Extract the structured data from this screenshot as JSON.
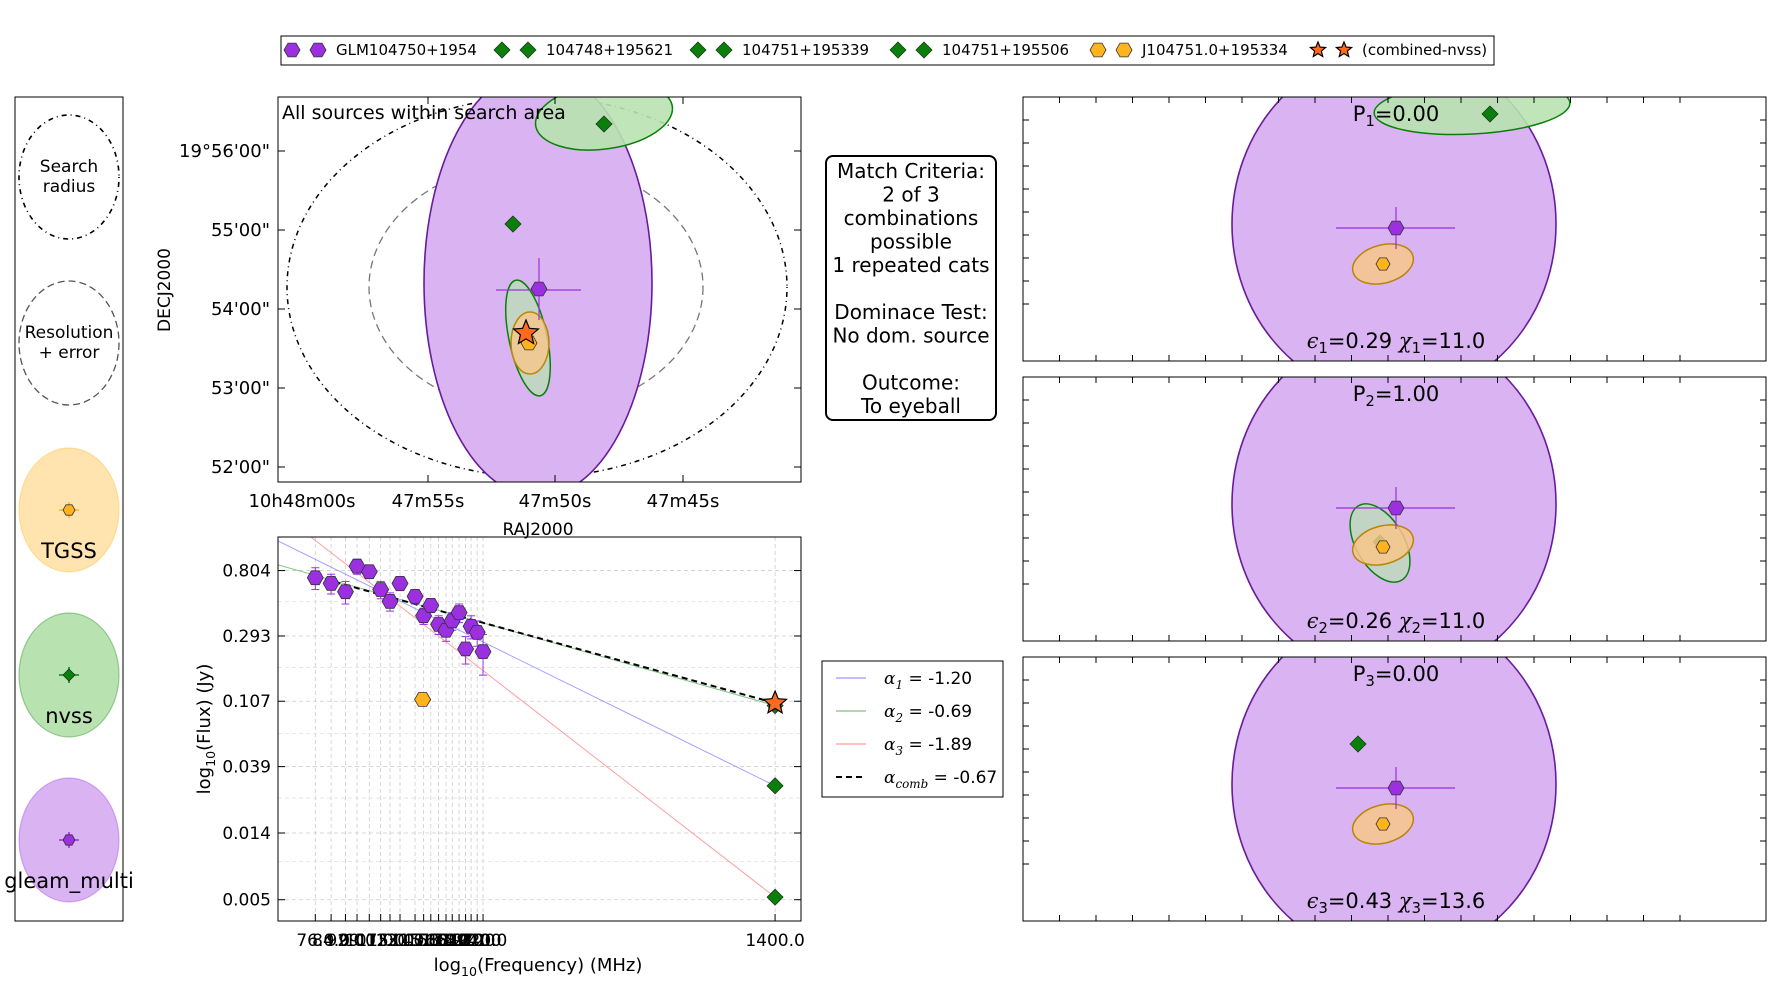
{
  "legend": [
    {
      "label": "GLM104750+1954",
      "marker": "hexagon",
      "color": "#9B30E0"
    },
    {
      "label": "104748+195621",
      "marker": "diamond",
      "color": "#0A7F0A"
    },
    {
      "label": "104751+195339",
      "marker": "diamond",
      "color": "#0A7F0A"
    },
    {
      "label": "104751+195506",
      "marker": "diamond",
      "color": "#0A7F0A"
    },
    {
      "label": "J104751.0+195334",
      "marker": "hexagon",
      "color": "#FFB41E"
    },
    {
      "label": "(combined-nvss)",
      "marker": "star",
      "color": "#FF6A1E"
    }
  ],
  "key_panel": {
    "search": "Search\nradius",
    "resolution": "Resolution\n+ error",
    "catalogues": [
      {
        "name": "TGSS",
        "fill": "#FFE4B0",
        "marker_color": "#FFB41E"
      },
      {
        "name": "nvss",
        "fill": "#B8E2B0",
        "marker_color": "#0A7F0A"
      },
      {
        "name": "gleam_multi",
        "fill": "#D9B3F2",
        "marker_color": "#9B30E0"
      }
    ]
  },
  "colors": {
    "gleam": "#9B30E0",
    "gleam_fill": "#D9B3F2",
    "gleam_edge": "#6A1B9A",
    "nvss": "#0A7F0A",
    "nvss_fill": "#B8E2B0",
    "tgss": "#FFB41E",
    "tgss_edge": "#B8860B",
    "combined": "#FF6A1E"
  },
  "sky_panel": {
    "title": "All sources within search area",
    "xlabel": "RAJ2000",
    "ylabel": "DECJ2000",
    "xticks": [
      "10h48m00s",
      "47m55s",
      "47m50s",
      "47m45s"
    ],
    "yticks": [
      "19°56'00\"",
      "55'00\"",
      "54'00\"",
      "53'00\"",
      "52'00\""
    ]
  },
  "criteria": {
    "text": "Match Criteria:\n2 of 3\ncombinations\npossible\n1 repeated cats\n\nDominace Test:\nNo dom. source\n\nOutcome:\nTo eyeball"
  },
  "combos": [
    {
      "p_label": "P",
      "p_sub": "1",
      "p_value": "=0.00",
      "eps_sub": "1",
      "eps": "=0.29",
      "chi_sub": "1",
      "chi": "=11.0"
    },
    {
      "p_label": "P",
      "p_sub": "2",
      "p_value": "=1.00",
      "eps_sub": "2",
      "eps": "=0.26",
      "chi_sub": "2",
      "chi": "=11.0"
    },
    {
      "p_label": "P",
      "p_sub": "3",
      "p_value": "=0.00",
      "eps_sub": "3",
      "eps": "=0.43",
      "chi_sub": "3",
      "chi": "=13.6"
    }
  ],
  "alpha_legend": [
    {
      "sub": "1",
      "value": " = -1.20",
      "color": "#8080FF",
      "dashed": false
    },
    {
      "sub": "2",
      "value": " = -0.69",
      "color": "#60B060",
      "dashed": false
    },
    {
      "sub": "3",
      "value": " = -1.89",
      "color": "#FF8080",
      "dashed": false
    },
    {
      "sub": "comb",
      "value": " = -0.67",
      "color": "#000000",
      "dashed": true
    }
  ],
  "chart_data": {
    "type": "scatter",
    "title": "",
    "xlabel": "log10(Frequency) (MHz)",
    "ylabel": "log10(Flux) (Jy)",
    "y_log": true,
    "x_log": true,
    "xlim": [
      60,
      1650
    ],
    "ylim": [
      0.0036,
      1.35
    ],
    "grid": true,
    "yticks": [
      0.804,
      0.293,
      0.107,
      0.039,
      0.014,
      0.005
    ],
    "ytick_labels": [
      "0.804",
      "0.293",
      "0.107",
      "0.039",
      "0.014",
      "0.005"
    ],
    "xtick_labels": [
      "76.0",
      "84.0",
      "92.0",
      "99.0",
      "107.0",
      "115.0",
      "122.0",
      "130.0",
      "143.0",
      "151.0",
      "158.0",
      "166.0",
      "174.0",
      "181.0",
      "189.0",
      "197.0",
      "204.0",
      "212.0",
      "220.0",
      "1400.0"
    ],
    "series": [
      {
        "name": "GLM104750+1954",
        "marker": "hexagon",
        "x": [
          76,
          84,
          92,
          99,
          107,
          115,
          122,
          130,
          143,
          151,
          158,
          166,
          174,
          181,
          189,
          197,
          204,
          212,
          220
        ],
        "y": [
          0.72,
          0.66,
          0.58,
          0.86,
          0.79,
          0.6,
          0.5,
          0.66,
          0.54,
          0.4,
          0.47,
          0.35,
          0.32,
          0.37,
          0.42,
          0.24,
          0.34,
          0.31,
          0.23
        ],
        "yerr": [
          0.12,
          0.1,
          0.1,
          0.1,
          0.08,
          0.08,
          0.07,
          0.07,
          0.06,
          0.05,
          0.05,
          0.05,
          0.05,
          0.05,
          0.06,
          0.05,
          0.06,
          0.06,
          0.07
        ]
      },
      {
        "name": "J104751.0+195334",
        "marker": "hexagon",
        "x": [
          150
        ],
        "y": [
          0.11
        ]
      },
      {
        "name": "104748+195621",
        "marker": "diamond",
        "x": [
          1400
        ],
        "y": [
          0.1
        ]
      },
      {
        "name": "104751+195339",
        "marker": "diamond",
        "x": [
          1400
        ],
        "y": [
          0.029
        ]
      },
      {
        "name": "104751+195506",
        "marker": "diamond",
        "x": [
          1400
        ],
        "y": [
          0.0052
        ]
      },
      {
        "name": "(combined-nvss)",
        "marker": "star",
        "x": [
          1400
        ],
        "y": [
          0.104
        ]
      }
    ],
    "fits": [
      {
        "name": "α1",
        "alpha": -1.2,
        "ref_x": 1400,
        "ref_y": 0.029
      },
      {
        "name": "α2",
        "alpha": -0.69,
        "ref_x": 1400,
        "ref_y": 0.1
      },
      {
        "name": "α3",
        "alpha": -1.89,
        "ref_x": 1400,
        "ref_y": 0.0052
      },
      {
        "name": "αcomb",
        "alpha": -0.67,
        "ref_x": 1400,
        "ref_y": 0.104,
        "x_start": 76
      }
    ]
  }
}
